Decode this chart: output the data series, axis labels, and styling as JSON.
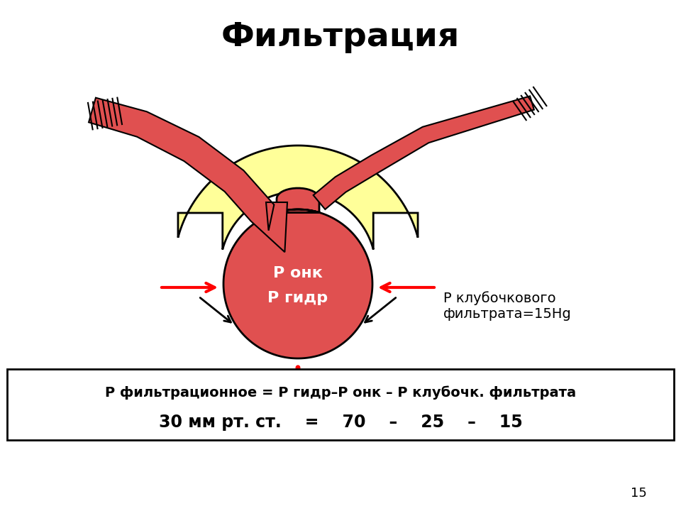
{
  "title": "Фильтрация",
  "title_fontsize": 34,
  "title_fontweight": "bold",
  "bg_color": "#ffffff",
  "glomerulus_color": "#E05050",
  "capsule_color": "#FFFF99",
  "capsule_outline": "#000000",
  "text_center_line1": "Р онк",
  "text_center_line2": "Р гидр",
  "text_right_line1": "Р клубочкового",
  "text_right_line2": "фильтрата=15Hg",
  "formula_line1": "Р фильтрационное = Р гидр–Р онк – Р клубочк. фильтрата",
  "formula_line2": "30 мм рт. ст.    =    70    –    25    –    15",
  "page_number": "15"
}
